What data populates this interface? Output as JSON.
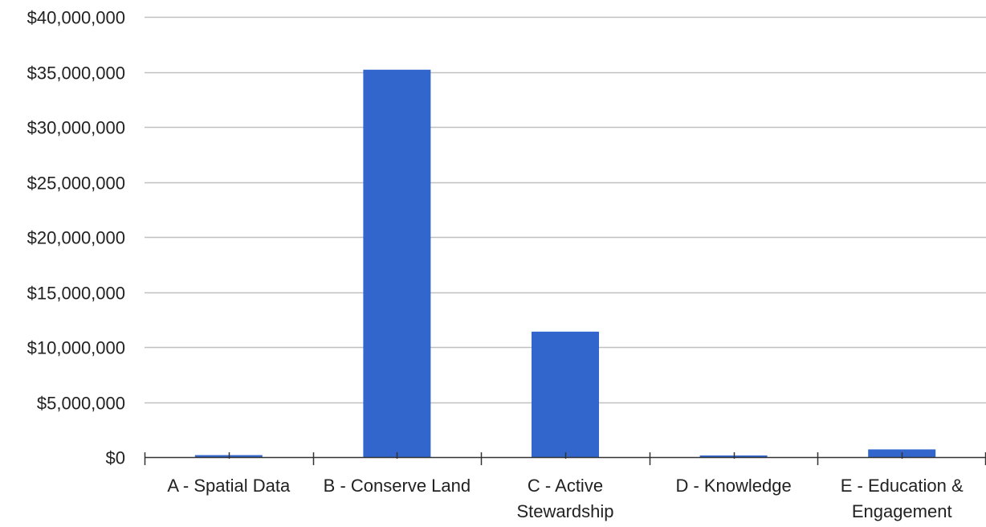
{
  "chart_data": {
    "type": "bar",
    "categories": [
      [
        "A - Spatial Data"
      ],
      [
        "B - Conserve Land"
      ],
      [
        "C - Active",
        "Stewardship"
      ],
      [
        "D - Knowledge"
      ],
      [
        "E - Education &",
        "Engagement"
      ]
    ],
    "values": [
      180000,
      35200000,
      11400000,
      150000,
      700000
    ],
    "ylim": [
      0,
      40000000
    ],
    "yticks": [
      0,
      5000000,
      10000000,
      15000000,
      20000000,
      25000000,
      30000000,
      35000000,
      40000000
    ],
    "ytick_labels": [
      "$0",
      "$5,000,000",
      "$10,000,000",
      "$15,000,000",
      "$20,000,000",
      "$25,000,000",
      "$30,000,000",
      "$35,000,000",
      "$40,000,000"
    ],
    "title": "",
    "xlabel": "",
    "ylabel": "",
    "grid": true,
    "legend": "none",
    "colors": {
      "bar": "#3366cc",
      "grid": "#c0c0c0",
      "axis": "#333333",
      "text": "#222222"
    }
  }
}
